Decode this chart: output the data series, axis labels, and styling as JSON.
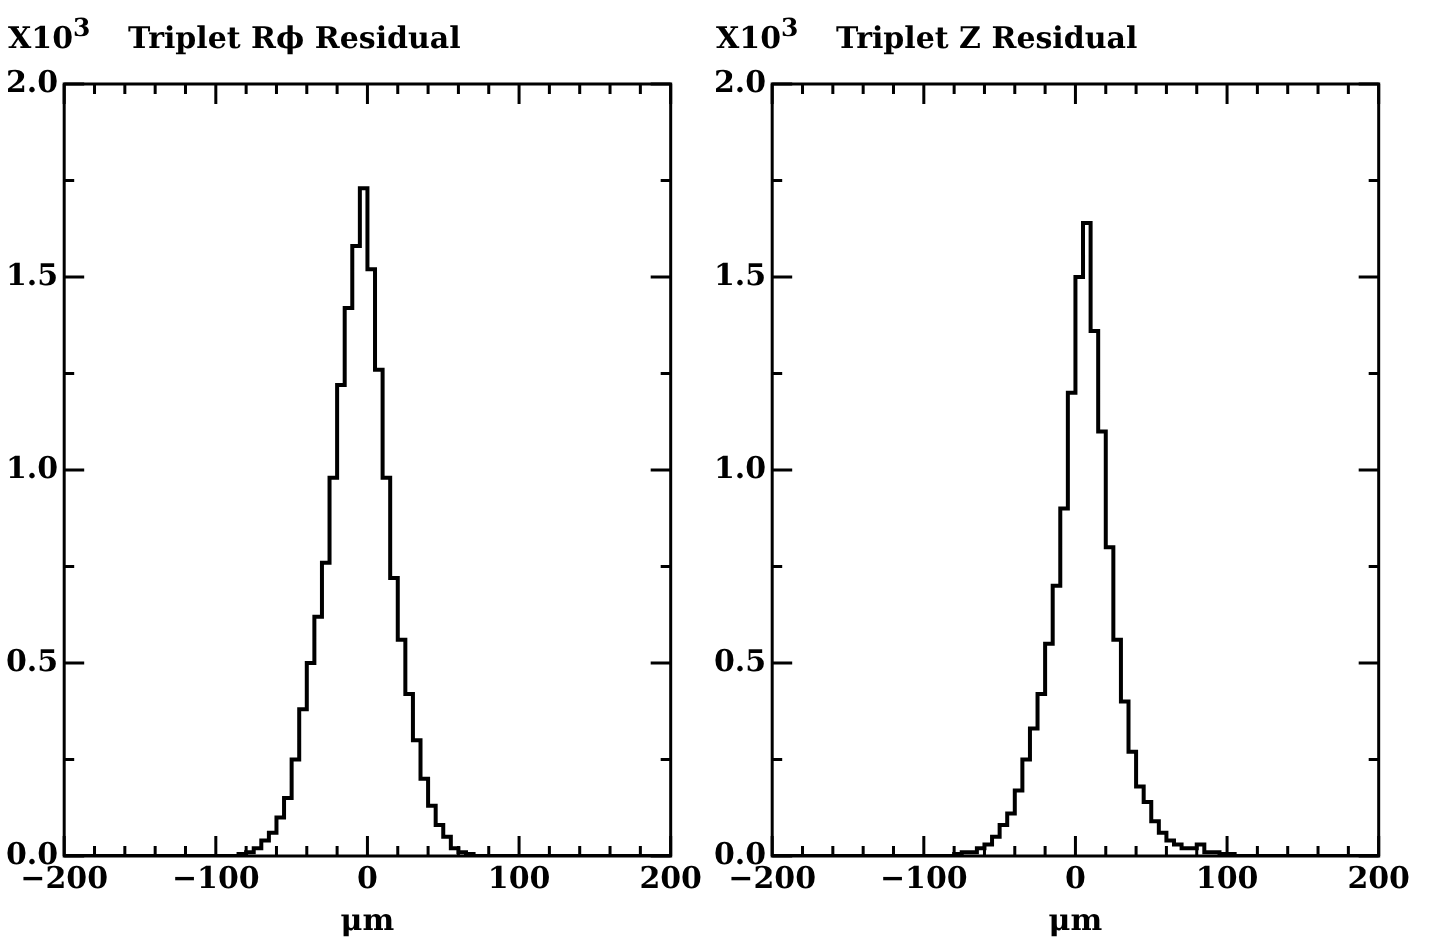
{
  "chart_data": [
    {
      "type": "histogram",
      "title": "Triplet Rϕ Residual",
      "ylabel": "X10$^{3}$",
      "xlabel": "μm",
      "bins": [
        -200,
        -195,
        -190,
        -185,
        -180,
        -175,
        -170,
        -165,
        -160,
        -155,
        -150,
        -145,
        -140,
        -135,
        -130,
        -125,
        -120,
        -115,
        -110,
        -105,
        -100,
        -95,
        -90,
        -85,
        -80,
        -75,
        -70,
        -65,
        -60,
        -55,
        -50,
        -45,
        -40,
        -35,
        -30,
        -25,
        -20,
        -15,
        -10,
        -5,
        0,
        5,
        10,
        15,
        20,
        25,
        30,
        35,
        40,
        45,
        50,
        55,
        60,
        65,
        70,
        75,
        80,
        85,
        90,
        95,
        100,
        105,
        110,
        115,
        120,
        125,
        130,
        135,
        140,
        145,
        150,
        155,
        160,
        165,
        170,
        175,
        180,
        185,
        190,
        195,
        200
      ],
      "values": [
        0,
        0,
        0,
        0,
        0,
        0,
        0,
        0,
        0,
        0,
        0,
        0,
        0,
        0,
        0,
        0,
        0,
        0,
        0,
        0,
        0,
        0,
        0,
        0.005,
        0.01,
        0.02,
        0.04,
        0.06,
        0.1,
        0.15,
        0.25,
        0.38,
        0.5,
        0.62,
        0.76,
        0.98,
        1.22,
        1.42,
        1.58,
        1.73,
        1.52,
        1.26,
        0.98,
        0.72,
        0.56,
        0.42,
        0.3,
        0.2,
        0.13,
        0.08,
        0.05,
        0.02,
        0.01,
        0.005,
        0,
        0,
        0,
        0,
        0,
        0,
        0,
        0,
        0,
        0,
        0,
        0,
        0,
        0,
        0,
        0,
        0,
        0,
        0,
        0,
        0,
        0,
        0,
        0,
        0,
        0
      ],
      "color": "#000000",
      "xlim": [
        -200,
        200
      ],
      "xticks": [
        -200,
        {
          "value": -180,
          "label": null
        },
        {
          "value": -160,
          "label": null
        },
        {
          "value": -140,
          "label": null
        },
        {
          "value": -120,
          "label": null
        },
        -100,
        {
          "value": -80,
          "label": null
        },
        {
          "value": -60,
          "label": null
        },
        {
          "value": -40,
          "label": null
        },
        {
          "value": -20,
          "label": null
        },
        0,
        {
          "value": 20,
          "label": null
        },
        {
          "value": 40,
          "label": null
        },
        {
          "value": 60,
          "label": null
        },
        {
          "value": 80,
          "label": null
        },
        100,
        {
          "value": 120,
          "label": null
        },
        {
          "value": 140,
          "label": null
        },
        {
          "value": 160,
          "label": null
        },
        {
          "value": 180,
          "label": null
        },
        200
      ],
      "ylim": [
        0,
        2
      ],
      "yticks": [
        {
          "value": 0,
          "label": "0.0"
        },
        {
          "value": 0.25,
          "label": null
        },
        {
          "value": 0.5,
          "label": "0.5"
        },
        {
          "value": 0.75,
          "label": null
        },
        {
          "value": 1,
          "label": "1.0"
        },
        {
          "value": 1.25,
          "label": null
        },
        {
          "value": 1.5,
          "label": "1.5"
        },
        {
          "value": 1.75,
          "label": null
        },
        {
          "value": 2,
          "label": "2.0"
        }
      ],
      "grid": false,
      "legend": false
    },
    {
      "type": "histogram",
      "title": "Triplet Z Residual",
      "ylabel": "X10$^{3}$",
      "xlabel": "μm",
      "bins": [
        -200,
        -195,
        -190,
        -185,
        -180,
        -175,
        -170,
        -165,
        -160,
        -155,
        -150,
        -145,
        -140,
        -135,
        -130,
        -125,
        -120,
        -115,
        -110,
        -105,
        -100,
        -95,
        -90,
        -85,
        -80,
        -75,
        -70,
        -65,
        -60,
        -55,
        -50,
        -45,
        -40,
        -35,
        -30,
        -25,
        -20,
        -15,
        -10,
        -5,
        0,
        5,
        10,
        15,
        20,
        25,
        30,
        35,
        40,
        45,
        50,
        55,
        60,
        65,
        70,
        75,
        80,
        85,
        90,
        95,
        100,
        105,
        110,
        115,
        120,
        125,
        130,
        135,
        140,
        145,
        150,
        155,
        160,
        165,
        170,
        175,
        180,
        185,
        190,
        195,
        200
      ],
      "values": [
        0,
        0,
        0,
        0,
        0,
        0,
        0,
        0,
        0,
        0,
        0,
        0,
        0,
        0,
        0,
        0,
        0,
        0,
        0,
        0,
        0,
        0,
        0,
        0,
        0.005,
        0.01,
        0.01,
        0.02,
        0.03,
        0.05,
        0.08,
        0.11,
        0.17,
        0.25,
        0.33,
        0.42,
        0.55,
        0.7,
        0.9,
        1.2,
        1.5,
        1.64,
        1.36,
        1.1,
        0.8,
        0.56,
        0.4,
        0.27,
        0.18,
        0.14,
        0.09,
        0.06,
        0.04,
        0.03,
        0.02,
        0.02,
        0.03,
        0.01,
        0.01,
        0.005,
        0.005,
        0,
        0,
        0,
        0,
        0,
        0,
        0,
        0,
        0,
        0,
        0,
        0,
        0,
        0,
        0,
        0,
        0,
        0,
        0
      ],
      "color": "#000000",
      "xlim": [
        -200,
        200
      ],
      "xticks": [
        -200,
        {
          "value": -180,
          "label": null
        },
        {
          "value": -160,
          "label": null
        },
        {
          "value": -140,
          "label": null
        },
        {
          "value": -120,
          "label": null
        },
        -100,
        {
          "value": -80,
          "label": null
        },
        {
          "value": -60,
          "label": null
        },
        {
          "value": -40,
          "label": null
        },
        {
          "value": -20,
          "label": null
        },
        0,
        {
          "value": 20,
          "label": null
        },
        {
          "value": 40,
          "label": null
        },
        {
          "value": 60,
          "label": null
        },
        {
          "value": 80,
          "label": null
        },
        100,
        {
          "value": 120,
          "label": null
        },
        {
          "value": 140,
          "label": null
        },
        {
          "value": 160,
          "label": null
        },
        {
          "value": 180,
          "label": null
        },
        200
      ],
      "ylim": [
        0,
        2
      ],
      "yticks": [
        {
          "value": 0,
          "label": "0.0"
        },
        {
          "value": 0.25,
          "label": null
        },
        {
          "value": 0.5,
          "label": "0.5"
        },
        {
          "value": 0.75,
          "label": null
        },
        {
          "value": 1,
          "label": "1.0"
        },
        {
          "value": 1.25,
          "label": null
        },
        {
          "value": 1.5,
          "label": "1.5"
        },
        {
          "value": 1.75,
          "label": null
        },
        {
          "value": 2,
          "label": "2.0"
        }
      ],
      "grid": false,
      "legend": false
    }
  ]
}
